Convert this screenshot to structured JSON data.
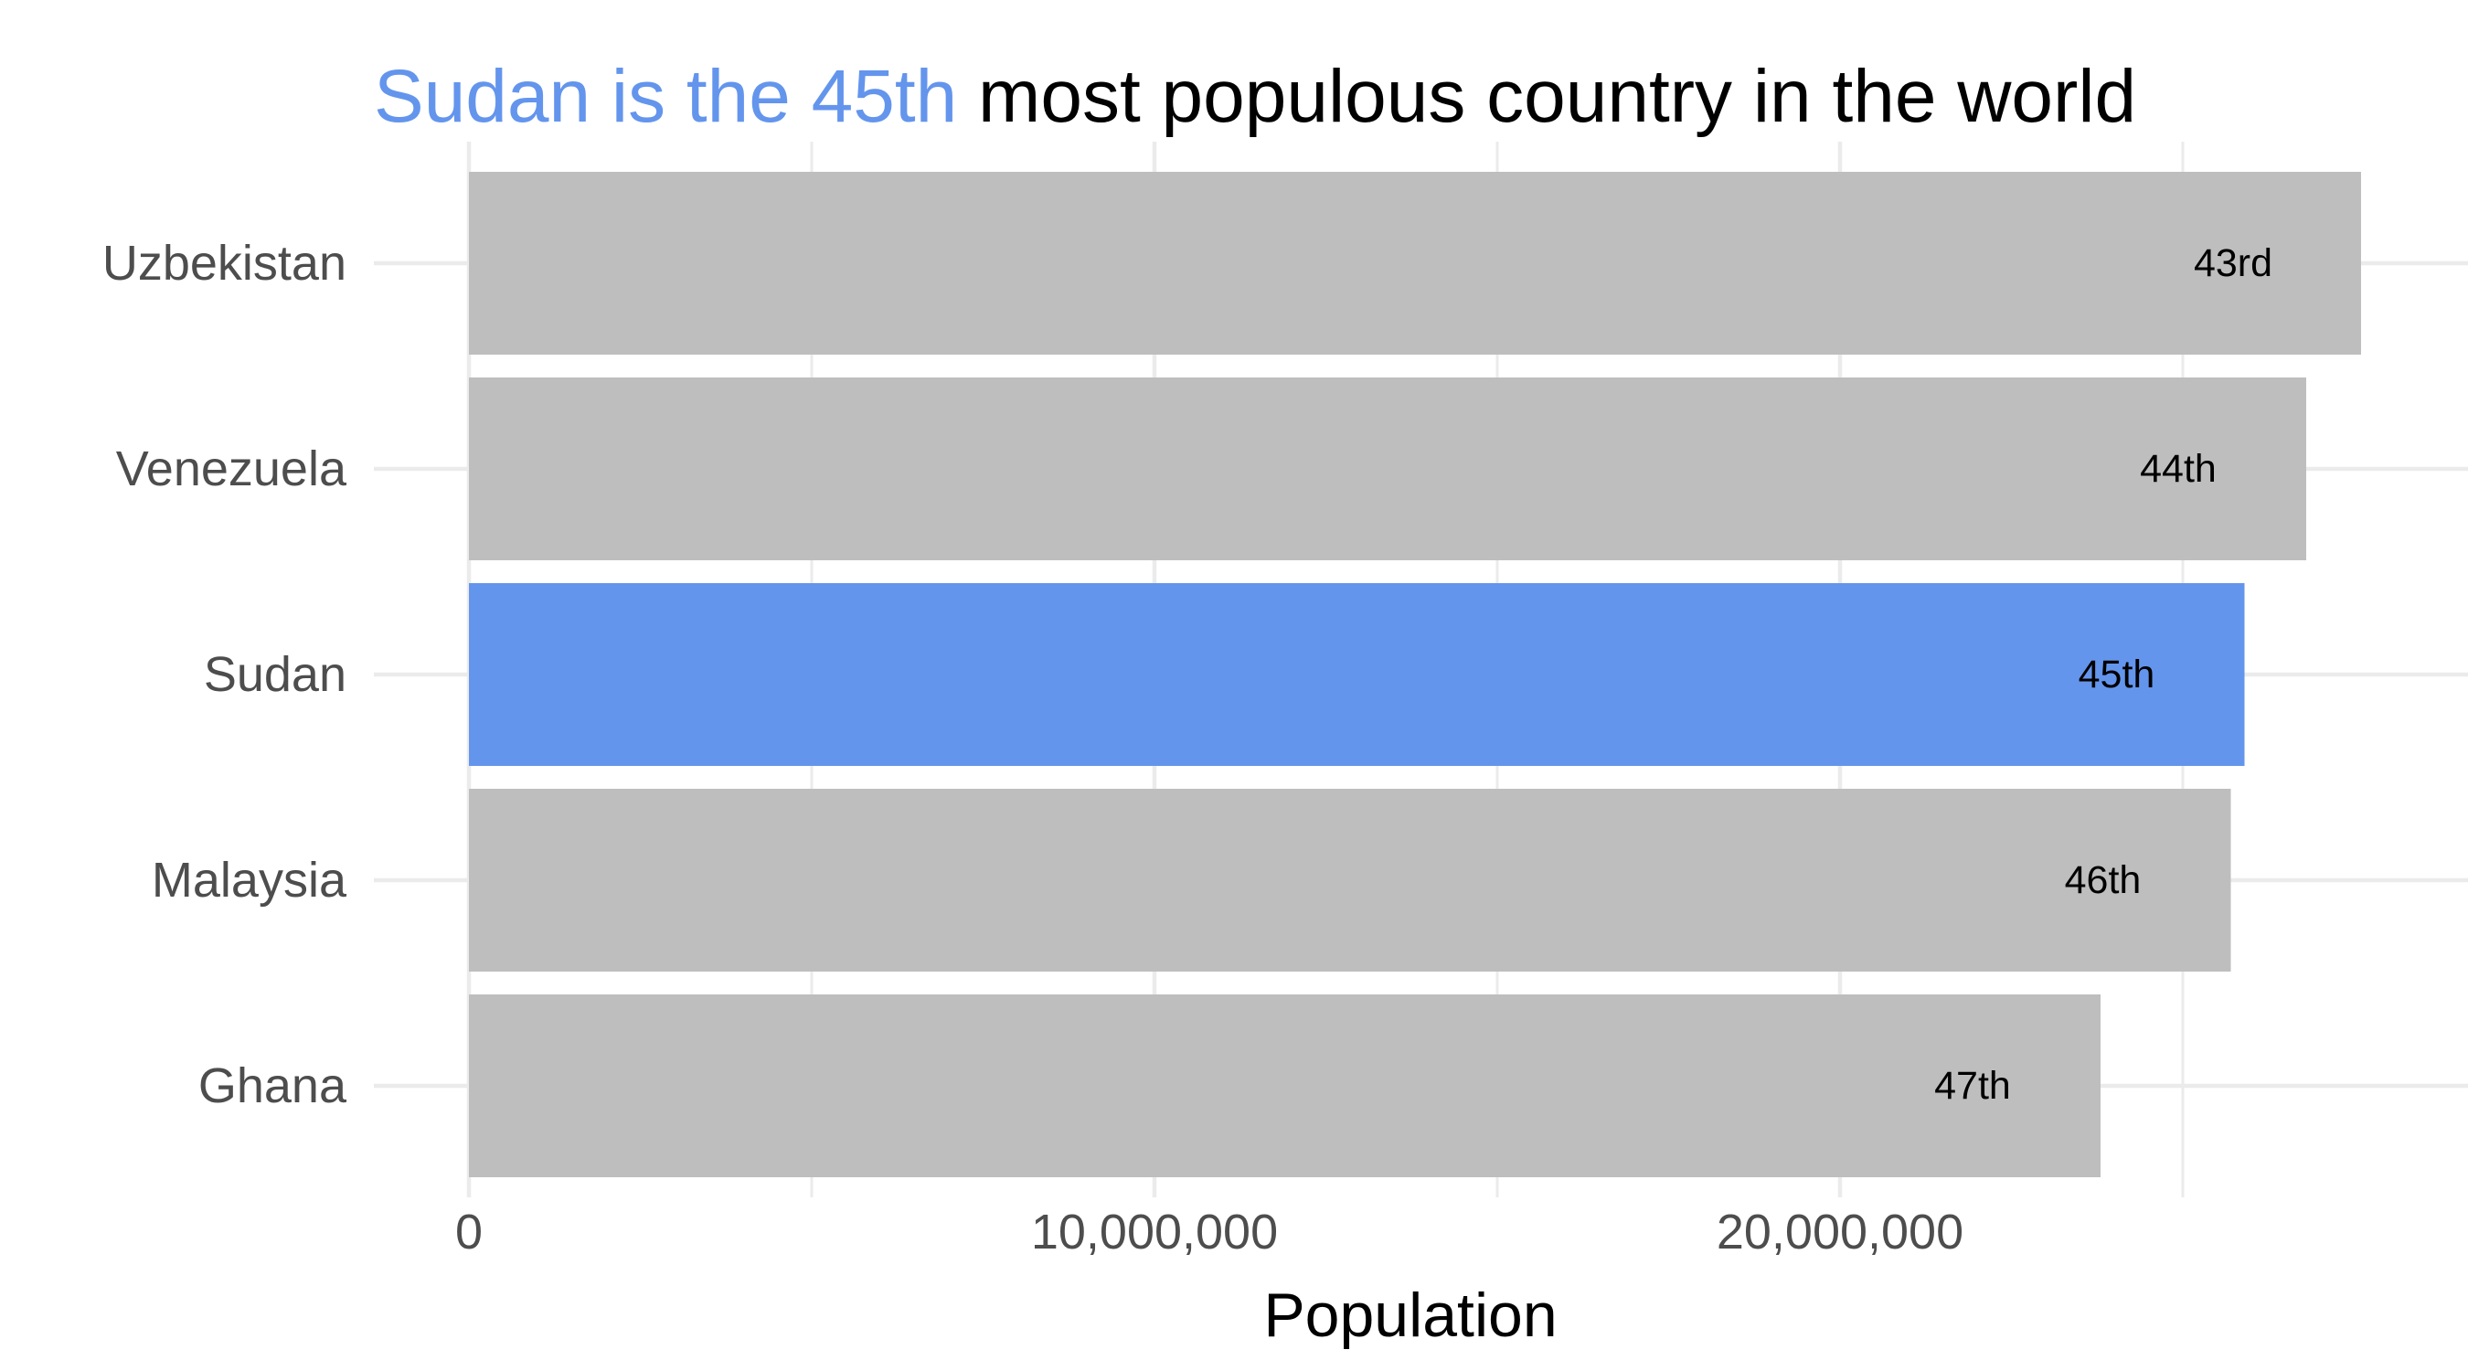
{
  "chart_data": {
    "type": "bar",
    "orientation": "horizontal",
    "title_parts": [
      {
        "text": "Sudan is the 45th",
        "color": "#6495ED"
      },
      {
        "text": " most populous country in the world",
        "color": "#000000"
      }
    ],
    "categories": [
      "Uzbekistan",
      "Venezuela",
      "Sudan",
      "Malaysia",
      "Ghana"
    ],
    "values": [
      27600000,
      26800000,
      25900000,
      25700000,
      23800000
    ],
    "labels": [
      "43rd",
      "44th",
      "45th",
      "46th",
      "47th"
    ],
    "highlight": "Sudan",
    "xlabel": "Population",
    "ylabel": "",
    "xlim": [
      0,
      29000000
    ],
    "xticks": [
      0,
      10000000,
      20000000
    ],
    "xtick_labels": [
      "0",
      "10,000,000",
      "20,000,000"
    ],
    "grid": true,
    "colors": {
      "bar": "#BEBEBE",
      "highlight": "#6495ED",
      "grid": "#EBEBEB",
      "tick_text": "#4D4D4D"
    }
  }
}
